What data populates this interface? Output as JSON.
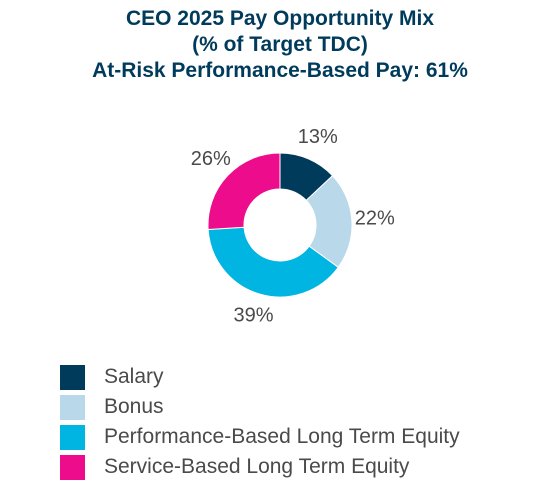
{
  "chart_data": {
    "type": "pie",
    "donut": true,
    "title_lines": [
      "CEO 2025 Pay Opportunity Mix",
      "(% of Target TDC)",
      "At-Risk Performance-Based Pay: 61%"
    ],
    "categories": [
      "Salary",
      "Bonus",
      "Performance-Based Long Term Equity",
      "Service-Based Long Term Equity"
    ],
    "values": [
      13,
      22,
      39,
      26
    ],
    "data_labels": [
      "13%",
      "22%",
      "39%",
      "26%"
    ],
    "colors": [
      "#003b5c",
      "#b9d9eb",
      "#00b5e2",
      "#ed0c8c"
    ],
    "legend_position": "bottom-left"
  }
}
